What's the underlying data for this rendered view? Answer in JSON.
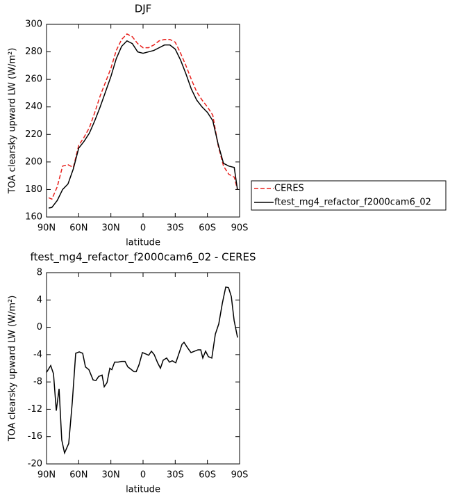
{
  "chart_data": [
    {
      "type": "line",
      "title": "DJF",
      "xlabel": "latitude",
      "ylabel": "TOA clearsky upward LW (W/m²)",
      "x": [
        88,
        85,
        80,
        75,
        70,
        65,
        60,
        55,
        50,
        45,
        40,
        35,
        30,
        25,
        20,
        15,
        10,
        5,
        0,
        -5,
        -10,
        -15,
        -20,
        -25,
        -30,
        -35,
        -40,
        -45,
        -50,
        -55,
        -60,
        -65,
        -70,
        -75,
        -80,
        -85,
        -88
      ],
      "series": [
        {
          "name": "CERES",
          "color": "#e8201c",
          "style": "dashed",
          "values": [
            174,
            173,
            182,
            197,
            198,
            196,
            212,
            218,
            225,
            236,
            248,
            258,
            268,
            281,
            289,
            293,
            291,
            286,
            283,
            283,
            285,
            288,
            289,
            289,
            287,
            279,
            270,
            260,
            251,
            245,
            240,
            234,
            212,
            197,
            191,
            189,
            180
          ]
        },
        {
          "name": "ftest_mg4_refactor_f2000cam6_02",
          "color": "#000000",
          "style": "solid",
          "values": [
            166.5,
            167,
            172,
            180,
            184,
            195,
            210,
            215,
            221,
            230,
            240,
            251,
            262,
            275,
            284,
            288,
            286,
            280,
            279,
            280,
            281,
            283,
            285,
            285,
            282,
            274,
            264,
            253,
            245,
            240,
            236,
            230,
            213,
            199,
            197,
            196,
            180
          ]
        }
      ],
      "xlim": [
        90,
        -90
      ],
      "xticks": [
        {
          "value": 90,
          "label": "90N"
        },
        {
          "value": 60,
          "label": "60N"
        },
        {
          "value": 30,
          "label": "30N"
        },
        0,
        {
          "value": -30,
          "label": "30S"
        },
        {
          "value": -60,
          "label": "60S"
        },
        {
          "value": -90,
          "label": "90S"
        }
      ],
      "ylim": [
        160,
        300
      ],
      "yticks": [
        160,
        180,
        200,
        220,
        240,
        260,
        280,
        300
      ],
      "legend": "right"
    },
    {
      "type": "line",
      "title": "ftest_mg4_refactor_f2000cam6_02 - CERES",
      "xlabel": "latitude",
      "ylabel": "TOA clearsky upward LW (W/m²)",
      "x": [
        90,
        86.1,
        83.5,
        80.9,
        78.3,
        75.8,
        73.2,
        69.3,
        66.0,
        62.8,
        59.5,
        56.3,
        53.7,
        50.5,
        46.6,
        44.0,
        41.4,
        38.2,
        36.2,
        33.6,
        31.0,
        29.1,
        26.5,
        23.3,
        20.0,
        16.8,
        14.2,
        11.6,
        8.4,
        6.4,
        3.8,
        0.6,
        -2.6,
        -5.2,
        -7.8,
        -10.4,
        -13.6,
        -16.2,
        -18.8,
        -22.0,
        -24.6,
        -27.2,
        -30.5,
        -33.1,
        -36.3,
        -38.2,
        -41.5,
        -44.7,
        -48.0,
        -51.2,
        -53.8,
        -55.7,
        -58.3,
        -60.9,
        -64.1,
        -67.4,
        -70.6,
        -73.9,
        -77.1,
        -79.7,
        -82.3,
        -84.9,
        -88.1
      ],
      "series": [
        {
          "color": "#000000",
          "style": "solid",
          "values": [
            -6.6,
            -5.6,
            -6.8,
            -12.2,
            -9,
            -16.5,
            -18.4,
            -17,
            -11,
            -3.8,
            -3.6,
            -3.8,
            -5.8,
            -6.2,
            -7.7,
            -7.8,
            -7.2,
            -7,
            -8.7,
            -8.1,
            -6,
            -6.2,
            -5.1,
            -5.1,
            -5,
            -5,
            -5.8,
            -6.1,
            -6.5,
            -6.5,
            -5.5,
            -3.7,
            -3.9,
            -4.1,
            -3.5,
            -4,
            -5.2,
            -6,
            -4.8,
            -4.5,
            -5.1,
            -4.9,
            -5.2,
            -4,
            -2.5,
            -2.2,
            -3,
            -3.7,
            -3.5,
            -3.3,
            -3.3,
            -4.5,
            -3.5,
            -4.3,
            -4.5,
            -1,
            0.5,
            3.5,
            5.9,
            5.8,
            4.5,
            1,
            -1.5
          ]
        }
      ],
      "xlim": [
        90,
        -90
      ],
      "xticks": [
        {
          "value": 90,
          "label": "90N"
        },
        {
          "value": 60,
          "label": "60N"
        },
        {
          "value": 30,
          "label": "30N"
        },
        0,
        {
          "value": -30,
          "label": "30S"
        },
        {
          "value": -60,
          "label": "60S"
        },
        {
          "value": -90,
          "label": "90S"
        }
      ],
      "ylim": [
        -20,
        8
      ],
      "yticks": [
        -20,
        -16,
        -12,
        -8,
        -4,
        0,
        4,
        8
      ]
    }
  ]
}
